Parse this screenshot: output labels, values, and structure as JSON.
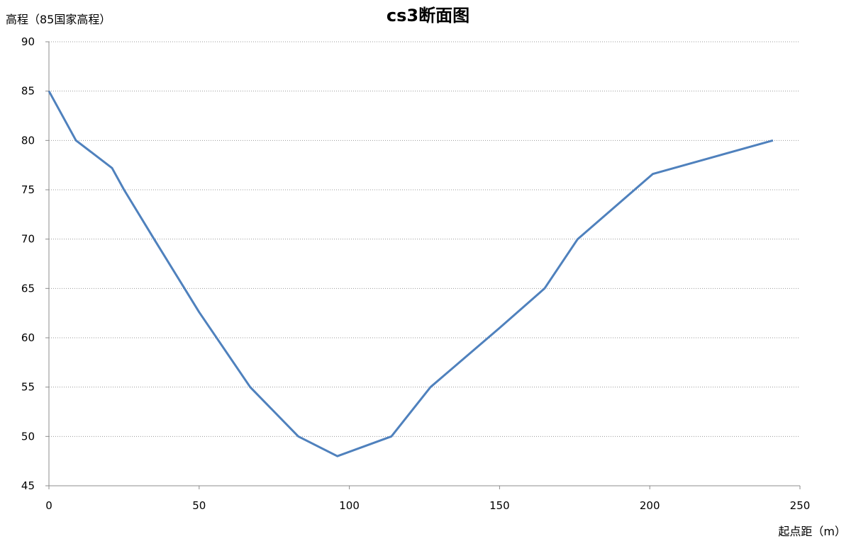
{
  "chart_data": {
    "type": "line",
    "title": "cs3断面图",
    "xlabel": "起点距（m）",
    "ylabel": "高程（85国家高程）",
    "xlim": [
      0,
      250
    ],
    "ylim": [
      45,
      90
    ],
    "xticks": [
      "0",
      "50",
      "100",
      "150",
      "200",
      "250"
    ],
    "yticks": [
      "45",
      "50",
      "55",
      "60",
      "65",
      "70",
      "75",
      "80",
      "85",
      "90"
    ],
    "grid": true,
    "grid_style": "dotted horizontal",
    "line_color": "#4f81bd",
    "series": [
      {
        "x": [
          0,
          9,
          21,
          25,
          35,
          50,
          67,
          83,
          96,
          114,
          127,
          150,
          165,
          176,
          201,
          241
        ],
        "y": [
          85,
          80,
          77.2,
          75,
          70,
          62.6,
          55,
          50,
          48,
          50,
          55,
          61,
          65,
          70,
          76.6,
          80
        ]
      }
    ]
  }
}
